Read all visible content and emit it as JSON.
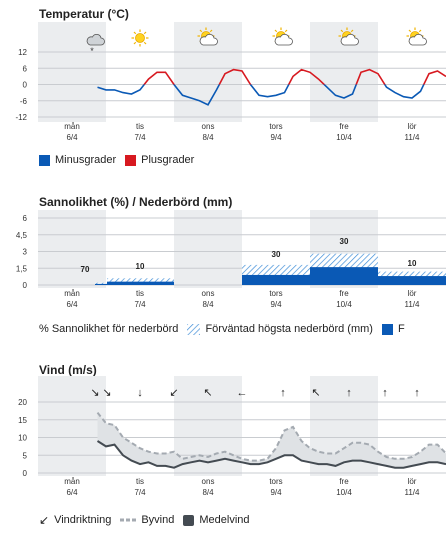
{
  "temperature": {
    "title": "Temperatur (°C)",
    "ticks": [
      "12",
      "6",
      "0",
      "-6",
      "-12"
    ],
    "tick_values": [
      12,
      6,
      0,
      -6,
      -12
    ],
    "weather_icons": [
      "partly-cloudy-snow-icon",
      "sun-icon",
      "partly-cloudy-sun-icon",
      "partly-cloudy-sun-icon",
      "partly-cloudy-sun-icon",
      "partly-cloudy-sun-icon"
    ],
    "legend": [
      {
        "label": "Minusgrader",
        "color": "#0a59b5"
      },
      {
        "label": "Plusgrader",
        "color": "#d71920"
      }
    ]
  },
  "days": [
    {
      "name": "mån",
      "date": "6/4"
    },
    {
      "name": "tis",
      "date": "7/4"
    },
    {
      "name": "ons",
      "date": "8/4"
    },
    {
      "name": "tors",
      "date": "9/4"
    },
    {
      "name": "fre",
      "date": "10/4"
    },
    {
      "name": "lör",
      "date": "11/4"
    }
  ],
  "precipitation": {
    "title": "Sannolikhet (%) / Nederbörd (mm)",
    "ticks": [
      "6",
      "4,5",
      "3",
      "1,5",
      "0"
    ],
    "tick_values": [
      6,
      4.5,
      3,
      1.5,
      0
    ],
    "probability_labels": [
      "",
      "70 10",
      "",
      "30",
      "30",
      "10"
    ],
    "legend": [
      {
        "label": "% Sannolikhet för nederbörd"
      },
      {
        "label": "Förväntad högsta nederbörd (mm)"
      },
      {
        "label": "F"
      }
    ]
  },
  "wind": {
    "title": "Vind (m/s)",
    "ticks": [
      "20",
      "15",
      "10",
      "5",
      "0"
    ],
    "tick_values": [
      20,
      15,
      10,
      5,
      0
    ],
    "direction_arrows": [
      "↘",
      "↘",
      "↓",
      "↙",
      "↖",
      "←",
      "↑",
      "↖",
      "↑",
      "↑",
      "↑"
    ],
    "legend": [
      {
        "label": "Vindriktning"
      },
      {
        "label": "Byvind"
      },
      {
        "label": "Medelvind"
      }
    ]
  },
  "chart_data": [
    {
      "type": "line",
      "title": "Temperatur (°C)",
      "x_unit": "hours from mån 6/4 00:00",
      "ylim": [
        -12,
        12
      ],
      "x": [
        21,
        24,
        27,
        30,
        33,
        36,
        39,
        42,
        45,
        48,
        51,
        54,
        57,
        60,
        63,
        66,
        69,
        72,
        75,
        78,
        81,
        84,
        87,
        90,
        93,
        96,
        99,
        102,
        105,
        108,
        111,
        114,
        117,
        120,
        123,
        126,
        129,
        132,
        135,
        138,
        141,
        144
      ],
      "values": [
        -1,
        -2,
        -2,
        -3,
        -3.5,
        -2,
        2,
        4.5,
        4.5,
        0,
        -4,
        -5,
        -6,
        -7.5,
        -2,
        4,
        5.5,
        5,
        0,
        -4,
        -4.5,
        -4,
        -3,
        3,
        5.5,
        4.5,
        2,
        -1,
        -4,
        -5,
        -3.5,
        4.5,
        5.5,
        4,
        -1,
        -3,
        -4.5,
        -5,
        -2.5,
        4,
        5,
        3
      ],
      "series": [
        {
          "name": "Minusgrader",
          "color": "#0a59b5"
        },
        {
          "name": "Plusgrader",
          "color": "#d71920"
        }
      ]
    },
    {
      "type": "bar",
      "title": "Sannolikhet (%) / Nederbörd (mm)",
      "categories": [
        "mån 6/4",
        "tis 7/4",
        "ons 8/4",
        "tors 9/4",
        "fre 10/4",
        "lör 11/4"
      ],
      "ylim": [
        0,
        6
      ],
      "series": [
        {
          "name": "Nederbörd (mm)",
          "values": [
            0.1,
            0.3,
            0,
            0.9,
            1.6,
            0.8
          ]
        },
        {
          "name": "Förväntad högsta nederbörd (mm)",
          "values": [
            0.2,
            0.6,
            0,
            1.8,
            2.8,
            1.2
          ]
        }
      ],
      "probability_percent": [
        null,
        [
          70,
          10
        ],
        null,
        30,
        30,
        10
      ]
    },
    {
      "type": "line",
      "title": "Vind (m/s)",
      "x_unit": "hours from mån 6/4 00:00",
      "ylim": [
        0,
        20
      ],
      "x": [
        21,
        24,
        27,
        30,
        33,
        36,
        39,
        42,
        45,
        48,
        51,
        54,
        57,
        60,
        63,
        66,
        69,
        72,
        75,
        78,
        81,
        84,
        87,
        90,
        93,
        96,
        99,
        102,
        105,
        108,
        111,
        114,
        117,
        120,
        123,
        126,
        129,
        132,
        135,
        138,
        141,
        144
      ],
      "series": [
        {
          "name": "Byvind",
          "values": [
            17,
            14,
            13.5,
            10,
            8.5,
            7,
            6,
            5.5,
            5.5,
            6,
            4,
            4.5,
            5,
            4.5,
            5.5,
            6,
            5,
            4,
            3.5,
            3.5,
            4,
            7,
            12,
            13,
            9,
            7,
            6,
            5.5,
            5.5,
            7,
            8.5,
            8.5,
            8,
            6,
            4.5,
            4,
            4,
            4.5,
            6,
            8,
            8,
            5.5
          ]
        },
        {
          "name": "Medelvind",
          "values": [
            9,
            7.5,
            8,
            5,
            3.5,
            2.5,
            3,
            2,
            2,
            1.5,
            2.5,
            3,
            3.5,
            3,
            3.5,
            4,
            3.5,
            3,
            2.5,
            2.5,
            3,
            4,
            5,
            5,
            3.5,
            3,
            2.5,
            2.5,
            2,
            3,
            3.5,
            3.5,
            3,
            2.5,
            2,
            1.5,
            1.5,
            2,
            2.5,
            3,
            3,
            2.5
          ]
        }
      ]
    }
  ]
}
